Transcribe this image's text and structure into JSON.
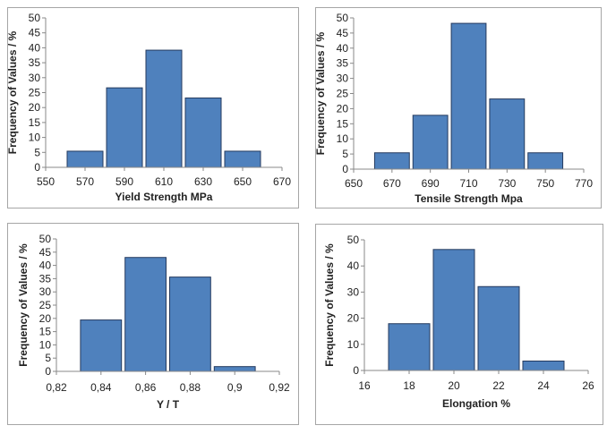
{
  "chart_data": [
    {
      "type": "bar",
      "title": "",
      "xlabel": "Yield Strength  MPa",
      "ylabel": "Frequency of Values / %",
      "x_ticks": [
        "550",
        "570",
        "590",
        "610",
        "630",
        "650",
        "670"
      ],
      "y_ticks": [
        "0",
        "5",
        "10",
        "15",
        "20",
        "25",
        "30",
        "35",
        "40",
        "45",
        "50"
      ],
      "xlim": [
        550,
        670
      ],
      "ylim": [
        0,
        50
      ],
      "bin_width": 20,
      "categories": [
        570,
        590,
        610,
        630,
        650
      ],
      "values": [
        5.4,
        26.6,
        39.2,
        23.2,
        5.4
      ],
      "bar_color": "#4f81bd",
      "grid": false
    },
    {
      "type": "bar",
      "title": "",
      "xlabel": "Tensile Strength  Mpa",
      "ylabel": "Frequency of Values / %",
      "x_ticks": [
        "650",
        "670",
        "690",
        "710",
        "730",
        "750",
        "770"
      ],
      "y_ticks": [
        "0",
        "5",
        "10",
        "15",
        "20",
        "25",
        "30",
        "35",
        "40",
        "45",
        "50"
      ],
      "xlim": [
        650,
        770
      ],
      "ylim": [
        0,
        50
      ],
      "bin_width": 20,
      "categories": [
        670,
        690,
        710,
        730,
        750
      ],
      "values": [
        5.4,
        17.8,
        48.2,
        23.2,
        5.4
      ],
      "bar_color": "#4f81bd",
      "grid": false
    },
    {
      "type": "bar",
      "title": "",
      "xlabel": "Y / T",
      "ylabel": "Frequency of Values / %",
      "x_ticks": [
        "0,82",
        "0,84",
        "0,86",
        "0,88",
        "0,9",
        "0,92"
      ],
      "y_ticks": [
        "0",
        "5",
        "10",
        "15",
        "20",
        "25",
        "30",
        "35",
        "40",
        "45",
        "50"
      ],
      "xlim": [
        0.82,
        0.92
      ],
      "ylim": [
        0,
        50
      ],
      "bin_width": 0.02,
      "categories": [
        0.84,
        0.86,
        0.88,
        0.9
      ],
      "values": [
        19.4,
        43.0,
        35.6,
        1.8
      ],
      "bar_color": "#4f81bd",
      "grid": false
    },
    {
      "type": "bar",
      "title": "",
      "xlabel": "Elongation %",
      "ylabel": "Frequency of Values / %",
      "x_ticks": [
        "16",
        "18",
        "20",
        "22",
        "24",
        "26"
      ],
      "y_ticks": [
        "0",
        "10",
        "20",
        "30",
        "40",
        "50"
      ],
      "xlim": [
        16,
        26
      ],
      "ylim": [
        0,
        50
      ],
      "bin_width": 2,
      "categories": [
        18,
        20,
        22,
        24
      ],
      "values": [
        17.9,
        46.3,
        32.1,
        3.6
      ],
      "bar_color": "#4f81bd",
      "grid": false
    }
  ]
}
